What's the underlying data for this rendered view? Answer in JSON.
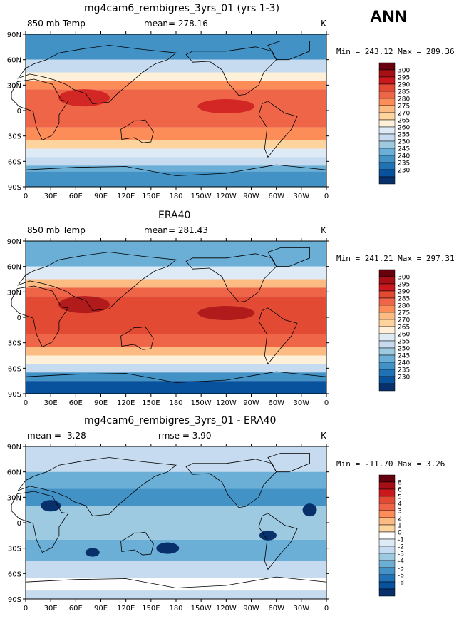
{
  "season": "ANN",
  "panels": [
    {
      "id": "model",
      "title": "mg4cam6_rembigres_3yrs_01 (yrs 1-3)",
      "variable": "850 mb Temp",
      "stat_label": "mean=",
      "stat_value": "278.16",
      "units": "K",
      "min_max_label": "Min = 243.12 Max = 289.36",
      "colorbar": [
        "300",
        "295",
        "290",
        "285",
        "280",
        "275",
        "270",
        "265",
        "260",
        "255",
        "250",
        "245",
        "240",
        "235",
        "230"
      ],
      "colors": [
        "#67000d",
        "#a50f15",
        "#cb181d",
        "#e34a33",
        "#ef6548",
        "#fc8d59",
        "#fdbb84",
        "#fdd49e",
        "#fef0d9",
        "#deebf7",
        "#c6dbef",
        "#9ecae1",
        "#6baed6",
        "#4292c6",
        "#2171b5",
        "#08519c",
        "#08306b"
      ]
    },
    {
      "id": "obs",
      "title": "ERA40",
      "variable": "850 mb Temp",
      "stat_label": "mean=",
      "stat_value": "281.43",
      "units": "K",
      "min_max_label": "Min = 241.21 Max = 297.31",
      "colorbar": [
        "300",
        "295",
        "290",
        "285",
        "280",
        "275",
        "270",
        "265",
        "260",
        "255",
        "250",
        "245",
        "240",
        "235",
        "230"
      ],
      "colors": [
        "#67000d",
        "#a50f15",
        "#cb181d",
        "#e34a33",
        "#ef6548",
        "#fc8d59",
        "#fdbb84",
        "#fdd49e",
        "#fef0d9",
        "#deebf7",
        "#c6dbef",
        "#9ecae1",
        "#6baed6",
        "#4292c6",
        "#2171b5",
        "#08519c",
        "#08306b"
      ]
    },
    {
      "id": "diff",
      "title": "mg4cam6_rembigres_3yrs_01 - ERA40",
      "variable": "",
      "stat_label": "mean =",
      "stat_value": "-3.28",
      "stat2_label": "rmse =",
      "stat2_value": "3.90",
      "units": "K",
      "min_max_label": "Min = -11.70 Max =   3.26",
      "colorbar": [
        "8",
        "6",
        "5",
        "4",
        "3",
        "2",
        "1",
        "0",
        "-1",
        "-2",
        "-3",
        "-4",
        "-5",
        "-6",
        "-8"
      ],
      "colors": [
        "#67000d",
        "#a50f15",
        "#cb181d",
        "#e34a33",
        "#ef6548",
        "#fc8d59",
        "#fdbb84",
        "#fdd49e",
        "#ffffff",
        "#deebf7",
        "#c6dbef",
        "#9ecae1",
        "#6baed6",
        "#4292c6",
        "#2171b5",
        "#08519c",
        "#08306b"
      ]
    }
  ],
  "lat_ticks": [
    "90N",
    "60N",
    "30N",
    "0",
    "30S",
    "60S",
    "90S"
  ],
  "lon_ticks": [
    "0",
    "30E",
    "60E",
    "90E",
    "120E",
    "150E",
    "180",
    "150W",
    "120W",
    "90W",
    "60W",
    "30W",
    "0"
  ]
}
